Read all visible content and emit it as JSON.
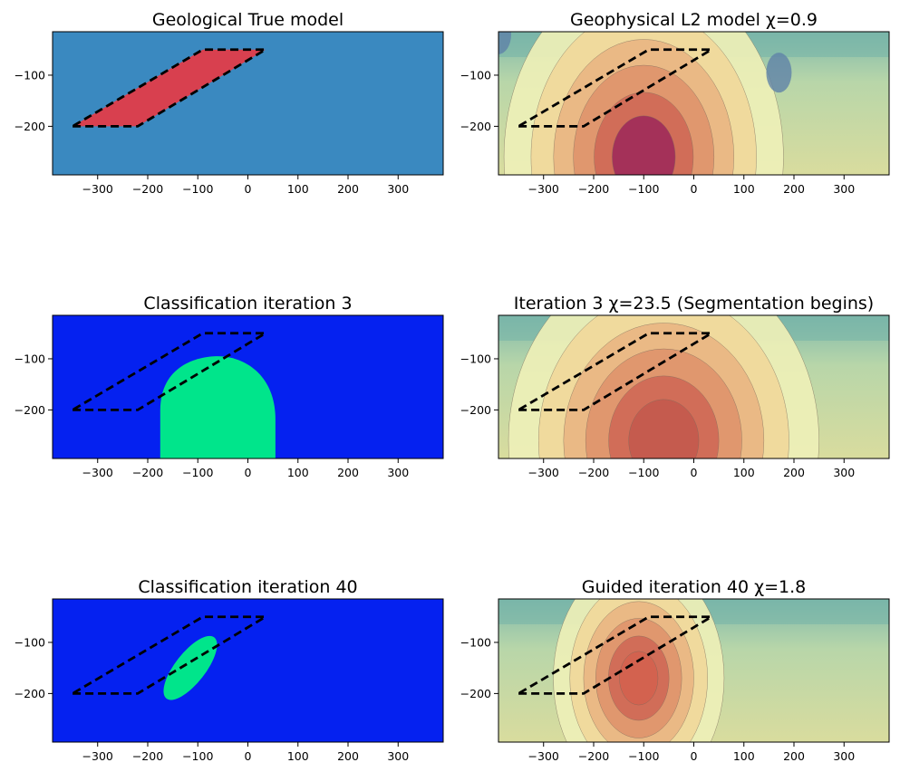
{
  "figure": {
    "layout": "3 rows x 2 columns"
  },
  "chart_data": [
    {
      "type": "heatmap",
      "title": "Geological True model",
      "style": "geological",
      "colors": {
        "background": "#3a89c0",
        "body": "#d8404f"
      },
      "xlim": [
        -390,
        390
      ],
      "ylim": [
        -295,
        -15
      ],
      "xticks": [
        -300,
        -200,
        -100,
        0,
        100,
        200,
        300
      ],
      "yticks": [
        -100,
        -200
      ],
      "true_body_outline": [
        [
          -350,
          -200
        ],
        [
          -220,
          -200
        ],
        [
          35,
          -50
        ],
        [
          -90,
          -50
        ]
      ],
      "anomaly": {
        "shape": "parallelogram",
        "vertices": [
          [
            -350,
            -200
          ],
          [
            -220,
            -200
          ],
          [
            35,
            -50
          ],
          [
            -90,
            -50
          ]
        ]
      }
    },
    {
      "type": "heatmap",
      "title": "Geophysical L2 model χ=0.9",
      "style": "geophysical",
      "xlim": [
        -390,
        390
      ],
      "ylim": [
        -295,
        -15
      ],
      "xticks": [
        -300,
        -200,
        -100,
        0,
        100,
        200,
        300
      ],
      "yticks": [
        -100,
        -200
      ],
      "true_body_outline": [
        [
          -350,
          -200
        ],
        [
          -220,
          -200
        ],
        [
          35,
          -50
        ],
        [
          -90,
          -50
        ]
      ],
      "anomaly": {
        "center": [
          -100,
          -260
        ],
        "radius_x": 180,
        "radius_y": 230,
        "peak_color": "#a12c5a",
        "low_lobes": [
          [
            -390,
            -20
          ],
          [
            170,
            -95
          ]
        ]
      }
    },
    {
      "type": "heatmap",
      "title": "Classification iteration 3",
      "style": "classification",
      "colors": {
        "background": "#0521f0",
        "body": "#00e58b"
      },
      "xlim": [
        -390,
        390
      ],
      "ylim": [
        -295,
        -15
      ],
      "xticks": [
        -300,
        -200,
        -100,
        0,
        100,
        200,
        300
      ],
      "yticks": [
        -100,
        -200
      ],
      "true_body_outline": [
        [
          -350,
          -200
        ],
        [
          -220,
          -200
        ],
        [
          35,
          -50
        ],
        [
          -90,
          -50
        ]
      ],
      "anomaly": {
        "shape": "dome",
        "x_range": [
          -175,
          55
        ],
        "top": -95,
        "bottom": -295
      }
    },
    {
      "type": "heatmap",
      "title": "Iteration 3 χ=23.5 (Segmentation begins)",
      "style": "geophysical",
      "xlim": [
        -390,
        390
      ],
      "ylim": [
        -295,
        -15
      ],
      "xticks": [
        -300,
        -200,
        -100,
        0,
        100,
        200,
        300
      ],
      "yticks": [
        -100,
        -200
      ],
      "true_body_outline": [
        [
          -350,
          -200
        ],
        [
          -220,
          -200
        ],
        [
          35,
          -50
        ],
        [
          -90,
          -50
        ]
      ],
      "anomaly": {
        "center": [
          -60,
          -260
        ],
        "radius_x": 200,
        "radius_y": 230,
        "peak_color": "#c45a4e"
      }
    },
    {
      "type": "heatmap",
      "title": "Classification iteration 40",
      "style": "classification",
      "colors": {
        "background": "#0521f0",
        "body": "#00e58b"
      },
      "xlim": [
        -390,
        390
      ],
      "ylim": [
        -295,
        -15
      ],
      "xticks": [
        -300,
        -200,
        -100,
        0,
        100,
        200,
        300
      ],
      "yticks": [
        -100,
        -200
      ],
      "true_body_outline": [
        [
          -350,
          -200
        ],
        [
          -220,
          -200
        ],
        [
          35,
          -50
        ],
        [
          -90,
          -50
        ]
      ],
      "anomaly": {
        "shape": "tilted ellipse",
        "center": [
          -115,
          -150
        ],
        "semi_axes": [
          125,
          32
        ],
        "angle_deg": 52
      }
    },
    {
      "type": "heatmap",
      "title": "Guided iteration 40 χ=1.8",
      "style": "geophysical",
      "xlim": [
        -390,
        390
      ],
      "ylim": [
        -295,
        -15
      ],
      "xticks": [
        -300,
        -200,
        -100,
        0,
        100,
        200,
        300
      ],
      "yticks": [
        -100,
        -200
      ],
      "true_body_outline": [
        [
          -350,
          -200
        ],
        [
          -220,
          -200
        ],
        [
          35,
          -50
        ],
        [
          -90,
          -50
        ]
      ],
      "anomaly": {
        "center": [
          -110,
          -170
        ],
        "radius_x": 110,
        "radius_y": 150,
        "peak_color": "#d4624f"
      }
    }
  ]
}
